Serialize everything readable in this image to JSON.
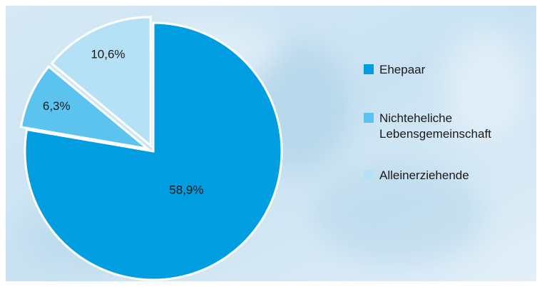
{
  "chart_data": {
    "type": "pie",
    "categories": [
      "Ehepaar",
      "Nichteheliche Lebensgemeinschaft",
      "Alleinerziehende"
    ],
    "values": [
      58.9,
      6.3,
      10.6
    ],
    "value_labels": [
      "58,9%",
      "6,3%",
      "10,6%"
    ],
    "colors": [
      "#009ee0",
      "#5cc3ee",
      "#b5e1f6"
    ]
  }
}
